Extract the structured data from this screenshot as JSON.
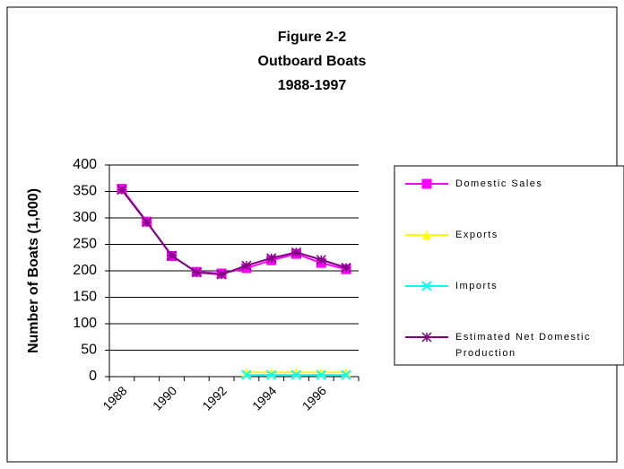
{
  "chart_data": {
    "type": "line",
    "title": [
      "Figure 2-2",
      "Outboard Boats",
      "1988-1997"
    ],
    "y_label": "Number of Boats (1,000)",
    "categories": [
      "1988",
      null,
      "1990",
      null,
      "1992",
      null,
      "1994",
      null,
      "1996",
      null
    ],
    "series": [
      {
        "name": "Domestic Sales",
        "color": "#ff00ff",
        "marker": "square",
        "values": [
          355,
          293,
          228,
          198,
          195,
          205,
          220,
          232,
          215,
          203
        ]
      },
      {
        "name": "Exports",
        "color": "#ffff00",
        "marker": "triangle",
        "values": [
          null,
          null,
          null,
          null,
          null,
          8,
          8,
          8,
          8,
          8
        ]
      },
      {
        "name": "Imports",
        "color": "#00ffff",
        "marker": "x",
        "values": [
          null,
          null,
          null,
          null,
          null,
          3,
          3,
          3,
          3,
          3
        ]
      },
      {
        "name": "Estimated Net Domestic Production",
        "color": "#800080",
        "marker": "star",
        "values": [
          353,
          292,
          229,
          197,
          193,
          210,
          224,
          235,
          221,
          206
        ]
      }
    ],
    "ylim": [
      0,
      400
    ],
    "yticks": [
      0,
      50,
      100,
      150,
      200,
      250,
      300,
      350,
      400
    ],
    "grid": true,
    "legend": "right"
  }
}
